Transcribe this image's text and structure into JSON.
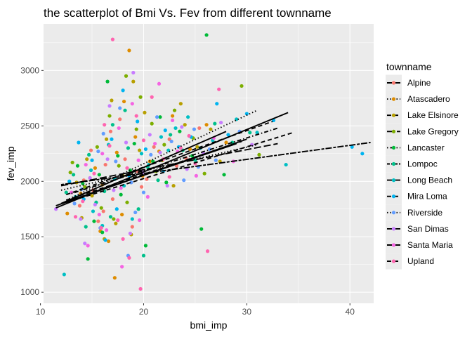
{
  "chart_data": {
    "type": "scatter",
    "title": "the scatterplot of Bmi Vs. Fev from different townname",
    "xlabel": "bmi_imp",
    "ylabel": "fev_imp",
    "xlim": [
      10.3,
      42.3
    ],
    "ylim": [
      900,
      3420
    ],
    "x_ticks": [
      10,
      20,
      30,
      40
    ],
    "y_ticks": [
      1000,
      1500,
      2000,
      2500,
      3000
    ],
    "grid": true,
    "legend_title": "townname",
    "legend_position": "right",
    "background": "#ebebeb",
    "series": [
      {
        "name": "Alpine",
        "color": "#f8766d",
        "dash": "solid",
        "fit": {
          "x": [
            12.0,
            28.0
          ],
          "y": [
            1800,
            2450
          ]
        }
      },
      {
        "name": "Atascadero",
        "color": "#de8c00",
        "dash": "dotted",
        "fit": {
          "x": [
            12.5,
            31.0
          ],
          "y": [
            1830,
            2640
          ]
        }
      },
      {
        "name": "Lake Elsinore",
        "color": "#b79f00",
        "dash": "dashed",
        "fit": {
          "x": [
            12.5,
            34.5
          ],
          "y": [
            1810,
            2440
          ]
        }
      },
      {
        "name": "Lake Gregory",
        "color": "#7cae00",
        "dash": "longdash",
        "fit": {
          "x": [
            12.0,
            33.0
          ],
          "y": [
            1960,
            2340
          ]
        }
      },
      {
        "name": "Lancaster",
        "color": "#00ba38",
        "dash": "dotdash",
        "fit": {
          "x": [
            13.0,
            33.0
          ],
          "y": [
            1890,
            2480
          ]
        }
      },
      {
        "name": "Lompoc",
        "color": "#00c08b",
        "dash": "twodash",
        "fit": {
          "x": [
            12.0,
            42.0
          ],
          "y": [
            1970,
            2350
          ]
        }
      },
      {
        "name": "Long Beach",
        "color": "#00bfc4",
        "dash": "solid",
        "fit": {
          "x": [
            11.5,
            34.0
          ],
          "y": [
            1760,
            2620
          ]
        }
      },
      {
        "name": "Mira Loma",
        "color": "#00b4f0",
        "dash": "dashed",
        "fit": {
          "x": [
            12.5,
            32.5
          ],
          "y": [
            1880,
            2540
          ]
        }
      },
      {
        "name": "Riverside",
        "color": "#619cff",
        "dash": "dotted",
        "fit": {
          "x": [
            12.0,
            31.0
          ],
          "y": [
            1920,
            2330
          ]
        }
      },
      {
        "name": "San Dimas",
        "color": "#c77cff",
        "dash": "solid",
        "fit": {
          "x": [
            11.5,
            30.0
          ],
          "y": [
            1780,
            2380
          ]
        }
      },
      {
        "name": "Santa Maria",
        "color": "#f564e3",
        "dash": "solid",
        "fit": {
          "x": [
            12.0,
            29.0
          ],
          "y": [
            1800,
            2340
          ]
        }
      },
      {
        "name": "Upland",
        "color": "#ff64b0",
        "dash": "dashed",
        "fit": {
          "x": [
            12.5,
            29.5
          ],
          "y": [
            1830,
            2360
          ]
        }
      }
    ],
    "points": [
      [
        14.2,
        2010,
        0
      ],
      [
        15.1,
        1920,
        0
      ],
      [
        16.3,
        2150,
        0
      ],
      [
        17.0,
        1840,
        0
      ],
      [
        18.2,
        2200,
        0
      ],
      [
        19.4,
        2090,
        0
      ],
      [
        21.0,
        2310,
        0
      ],
      [
        22.5,
        2380,
        0
      ],
      [
        24.1,
        2210,
        0
      ],
      [
        15.6,
        1640,
        0
      ],
      [
        16.8,
        2450,
        0
      ],
      [
        20.3,
        2020,
        0
      ],
      [
        13.8,
        1780,
        0
      ],
      [
        18.9,
        1590,
        0
      ],
      [
        25.4,
        2480,
        0
      ],
      [
        17.7,
        2560,
        0
      ],
      [
        14.9,
        2280,
        0
      ],
      [
        16.1,
        1730,
        0
      ],
      [
        19.8,
        1950,
        0
      ],
      [
        23.2,
        2140,
        0
      ],
      [
        15.3,
        2120,
        1
      ],
      [
        17.4,
        2260,
        1
      ],
      [
        18.6,
        3180,
        1
      ],
      [
        16.0,
        1970,
        1
      ],
      [
        19.2,
        2400,
        1
      ],
      [
        21.5,
        2270,
        1
      ],
      [
        13.9,
        1890,
        1
      ],
      [
        14.8,
        2030,
        1
      ],
      [
        22.8,
        2590,
        1
      ],
      [
        26.1,
        2510,
        1
      ],
      [
        17.9,
        1700,
        1
      ],
      [
        20.6,
        2180,
        1
      ],
      [
        15.8,
        1550,
        1
      ],
      [
        18.1,
        2720,
        1
      ],
      [
        24.5,
        2290,
        1
      ],
      [
        16.6,
        1460,
        1
      ],
      [
        19.9,
        2050,
        1
      ],
      [
        12.6,
        1710,
        1
      ],
      [
        28.0,
        2350,
        1
      ],
      [
        17.2,
        1130,
        1
      ],
      [
        14.5,
        2200,
        2
      ],
      [
        16.4,
        2380,
        2
      ],
      [
        18.0,
        2050,
        2
      ],
      [
        19.6,
        2280,
        2
      ],
      [
        21.8,
        2190,
        2
      ],
      [
        24.0,
        2510,
        2
      ],
      [
        15.0,
        1870,
        2
      ],
      [
        17.3,
        1620,
        2
      ],
      [
        20.1,
        2620,
        2
      ],
      [
        26.5,
        2470,
        2
      ],
      [
        22.9,
        1960,
        2
      ],
      [
        18.8,
        1520,
        2
      ],
      [
        16.9,
        2730,
        2
      ],
      [
        13.5,
        1990,
        2
      ],
      [
        25.2,
        2310,
        2
      ],
      [
        14.0,
        1670,
        2
      ],
      [
        19.0,
        2900,
        2
      ],
      [
        27.4,
        2180,
        2
      ],
      [
        23.6,
        2700,
        2
      ],
      [
        16.2,
        1480,
        2
      ],
      [
        15.5,
        2310,
        3
      ],
      [
        17.6,
        2140,
        3
      ],
      [
        19.3,
        2470,
        3
      ],
      [
        21.2,
        2090,
        3
      ],
      [
        23.0,
        2640,
        3
      ],
      [
        29.5,
        2860,
        3
      ],
      [
        14.3,
        1950,
        3
      ],
      [
        16.7,
        2590,
        3
      ],
      [
        18.4,
        1810,
        3
      ],
      [
        20.8,
        2520,
        3
      ],
      [
        25.9,
        2070,
        3
      ],
      [
        13.1,
        2170,
        3
      ],
      [
        17.1,
        1660,
        3
      ],
      [
        22.0,
        2330,
        3
      ],
      [
        31.2,
        2240,
        3
      ],
      [
        15.9,
        1760,
        3
      ],
      [
        19.7,
        2760,
        3
      ],
      [
        24.8,
        2390,
        3
      ],
      [
        12.9,
        2080,
        3
      ],
      [
        18.3,
        2950,
        3
      ],
      [
        14.1,
        1980,
        4
      ],
      [
        15.7,
        2060,
        4
      ],
      [
        17.5,
        2230,
        4
      ],
      [
        19.1,
        2340,
        4
      ],
      [
        20.9,
        2180,
        4
      ],
      [
        23.5,
        2450,
        4
      ],
      [
        16.0,
        1540,
        4
      ],
      [
        18.7,
        2100,
        4
      ],
      [
        22.2,
        1990,
        4
      ],
      [
        26.1,
        3320,
        4
      ],
      [
        13.6,
        2140,
        4
      ],
      [
        15.2,
        1640,
        4
      ],
      [
        17.8,
        1880,
        4
      ],
      [
        21.6,
        2580,
        4
      ],
      [
        24.7,
        2230,
        4
      ],
      [
        14.6,
        1300,
        4
      ],
      [
        20.2,
        1420,
        4
      ],
      [
        27.8,
        2060,
        4
      ],
      [
        16.5,
        2900,
        4
      ],
      [
        25.6,
        1570,
        4
      ],
      [
        14.7,
        2240,
        5
      ],
      [
        16.2,
        1910,
        5
      ],
      [
        18.5,
        2300,
        5
      ],
      [
        20.4,
        2130,
        5
      ],
      [
        22.6,
        2420,
        5
      ],
      [
        25.0,
        2190,
        5
      ],
      [
        15.4,
        1810,
        5
      ],
      [
        17.0,
        2510,
        5
      ],
      [
        19.5,
        1750,
        5
      ],
      [
        23.8,
        2280,
        5
      ],
      [
        28.6,
        2350,
        5
      ],
      [
        13.2,
        2060,
        5
      ],
      [
        16.8,
        1680,
        5
      ],
      [
        21.4,
        2010,
        5
      ],
      [
        26.9,
        2520,
        5
      ],
      [
        14.4,
        1590,
        5
      ],
      [
        18.2,
        2640,
        5
      ],
      [
        30.3,
        2440,
        5
      ],
      [
        12.5,
        1900,
        5
      ],
      [
        20.0,
        1330,
        5
      ],
      [
        14.9,
        2100,
        6
      ],
      [
        16.6,
        2330,
        6
      ],
      [
        18.1,
        1960,
        6
      ],
      [
        19.8,
        2250,
        6
      ],
      [
        21.7,
        2400,
        6
      ],
      [
        24.3,
        2580,
        6
      ],
      [
        15.1,
        1730,
        6
      ],
      [
        17.2,
        2020,
        6
      ],
      [
        20.5,
        2150,
        6
      ],
      [
        23.1,
        2480,
        6
      ],
      [
        29.0,
        2560,
        6
      ],
      [
        33.8,
        2150,
        6
      ],
      [
        13.4,
        1860,
        6
      ],
      [
        16.0,
        1600,
        6
      ],
      [
        22.4,
        2280,
        6
      ],
      [
        31.0,
        2440,
        6
      ],
      [
        26.7,
        2370,
        6
      ],
      [
        18.9,
        1660,
        6
      ],
      [
        12.3,
        1160,
        6
      ],
      [
        25.5,
        2300,
        6
      ],
      [
        15.0,
        2190,
        7
      ],
      [
        16.9,
        2380,
        7
      ],
      [
        18.6,
        2050,
        7
      ],
      [
        20.2,
        2290,
        7
      ],
      [
        22.1,
        2460,
        7
      ],
      [
        24.6,
        2400,
        7
      ],
      [
        14.2,
        1840,
        7
      ],
      [
        17.4,
        1750,
        7
      ],
      [
        19.4,
        2540,
        7
      ],
      [
        21.9,
        2090,
        7
      ],
      [
        30.0,
        2610,
        7
      ],
      [
        32.6,
        2550,
        7
      ],
      [
        13.7,
        2350,
        7
      ],
      [
        16.3,
        1470,
        7
      ],
      [
        23.4,
        2310,
        7
      ],
      [
        28.2,
        2420,
        7
      ],
      [
        18.0,
        2820,
        7
      ],
      [
        27.1,
        2700,
        7
      ],
      [
        12.8,
        2000,
        7
      ],
      [
        40.2,
        2310,
        7
      ],
      [
        41.2,
        2250,
        7
      ],
      [
        15.6,
        2270,
        8
      ],
      [
        17.3,
        2180,
        8
      ],
      [
        18.8,
        1990,
        8
      ],
      [
        20.7,
        2240,
        8
      ],
      [
        22.7,
        2360,
        8
      ],
      [
        25.3,
        2130,
        8
      ],
      [
        14.0,
        1930,
        8
      ],
      [
        16.1,
        2430,
        8
      ],
      [
        19.2,
        1720,
        8
      ],
      [
        21.3,
        2580,
        8
      ],
      [
        26.4,
        2290,
        8
      ],
      [
        13.3,
        1800,
        8
      ],
      [
        17.7,
        2660,
        8
      ],
      [
        23.9,
        2010,
        8
      ],
      [
        29.3,
        2450,
        8
      ],
      [
        15.8,
        1580,
        8
      ],
      [
        20.0,
        1900,
        8
      ],
      [
        24.9,
        2470,
        8
      ],
      [
        18.5,
        1330,
        8
      ],
      [
        27.0,
        2190,
        8
      ],
      [
        14.8,
        2030,
        9
      ],
      [
        16.5,
        2200,
        9
      ],
      [
        18.3,
        2350,
        9
      ],
      [
        19.9,
        2080,
        9
      ],
      [
        21.6,
        2260,
        9
      ],
      [
        23.7,
        2490,
        9
      ],
      [
        15.3,
        1790,
        9
      ],
      [
        17.1,
        1920,
        9
      ],
      [
        20.6,
        2420,
        9
      ],
      [
        22.3,
        1960,
        9
      ],
      [
        27.5,
        2530,
        9
      ],
      [
        11.5,
        1750,
        9
      ],
      [
        13.9,
        1660,
        9
      ],
      [
        18.7,
        1530,
        9
      ],
      [
        25.8,
        2250,
        9
      ],
      [
        16.7,
        2680,
        9
      ],
      [
        24.2,
        2110,
        9
      ],
      [
        30.5,
        2330,
        9
      ],
      [
        19.0,
        2980,
        9
      ],
      [
        14.3,
        1440,
        9
      ],
      [
        14.4,
        2150,
        10
      ],
      [
        16.0,
        2250,
        10
      ],
      [
        17.8,
        1940,
        10
      ],
      [
        19.5,
        2190,
        10
      ],
      [
        21.1,
        2340,
        10
      ],
      [
        23.3,
        2270,
        10
      ],
      [
        15.7,
        1700,
        10
      ],
      [
        17.6,
        2480,
        10
      ],
      [
        20.4,
        1860,
        10
      ],
      [
        22.8,
        2550,
        10
      ],
      [
        26.8,
        2390,
        10
      ],
      [
        13.0,
        1900,
        10
      ],
      [
        16.4,
        1560,
        10
      ],
      [
        18.9,
        2700,
        10
      ],
      [
        25.1,
        2050,
        10
      ],
      [
        14.6,
        1420,
        10
      ],
      [
        19.6,
        1650,
        10
      ],
      [
        28.7,
        2180,
        10
      ],
      [
        21.5,
        2880,
        10
      ],
      [
        17.9,
        1230,
        10
      ],
      [
        15.2,
        2070,
        11
      ],
      [
        16.7,
        2320,
        11
      ],
      [
        18.4,
        2120,
        11
      ],
      [
        20.0,
        2370,
        11
      ],
      [
        21.9,
        2200,
        11
      ],
      [
        24.4,
        2410,
        11
      ],
      [
        14.1,
        1820,
        11
      ],
      [
        17.5,
        1650,
        11
      ],
      [
        19.3,
        2590,
        11
      ],
      [
        22.5,
        2040,
        11
      ],
      [
        27.3,
        2830,
        11
      ],
      [
        13.4,
        1680,
        11
      ],
      [
        16.2,
        2510,
        11
      ],
      [
        18.0,
        1480,
        11
      ],
      [
        23.6,
        2300,
        11
      ],
      [
        15.9,
        1580,
        11
      ],
      [
        20.8,
        2760,
        11
      ],
      [
        26.2,
        1370,
        11
      ],
      [
        17.0,
        3280,
        11
      ],
      [
        19.7,
        1030,
        11
      ],
      [
        25.0,
        2160,
        11
      ],
      [
        18.6,
        1310,
        11
      ]
    ]
  }
}
